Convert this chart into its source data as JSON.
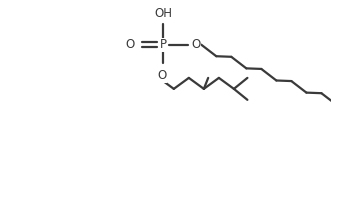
{
  "background_color": "#ffffff",
  "line_color": "#3a3a3a",
  "line_width": 1.6,
  "fig_width": 3.58,
  "fig_height": 2.02,
  "dpi": 100,
  "font_size": 8.5,
  "P_x": 4.7,
  "P_y": 1.55,
  "xlim": [
    0,
    10.5
  ],
  "ylim": [
    -3.8,
    3.0
  ]
}
